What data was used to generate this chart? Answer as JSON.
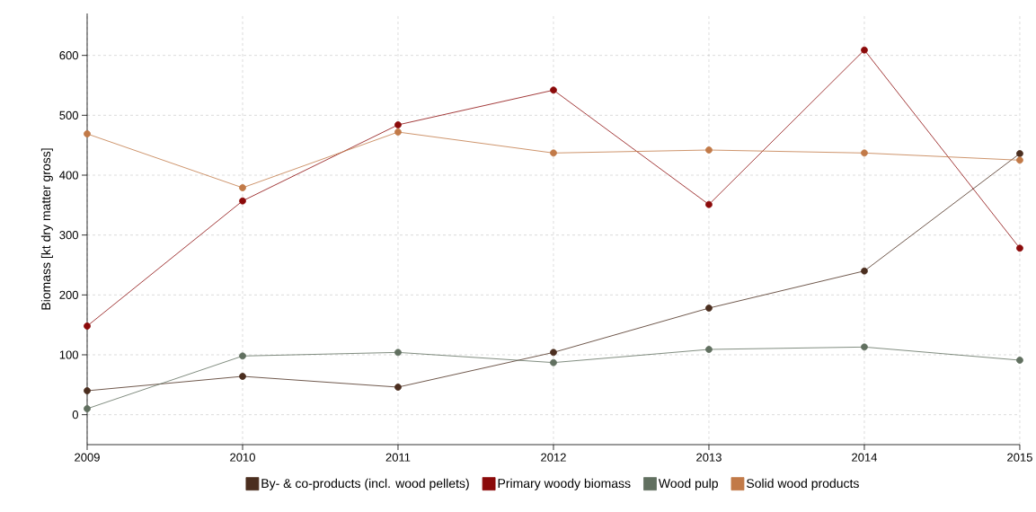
{
  "chart_data": {
    "type": "line",
    "ylabel": "Biomass [kt dry matter gross]",
    "x": [
      2009,
      2010,
      2011,
      2012,
      2013,
      2014,
      2015
    ],
    "xlim": [
      2009,
      2015
    ],
    "xticks": [
      2009,
      2010,
      2011,
      2012,
      2013,
      2014,
      2015
    ],
    "ylim": [
      -50,
      670
    ],
    "yticks": [
      0,
      100,
      200,
      300,
      400,
      500,
      600
    ],
    "grid": true,
    "legend": "bottom",
    "marker": "circle",
    "line_style": "solid",
    "series": [
      {
        "name": "By- & co-products (incl. wood pellets)",
        "color": "#4b2e1f",
        "values": [
          40,
          64,
          46,
          104,
          178,
          240,
          436
        ]
      },
      {
        "name": "Primary woody biomass",
        "color": "#8b0a0a",
        "values": [
          148,
          357,
          484,
          542,
          351,
          609,
          278
        ]
      },
      {
        "name": "Wood pulp",
        "color": "#617060",
        "values": [
          10,
          98,
          104,
          87,
          109,
          113,
          91
        ]
      },
      {
        "name": "Solid wood products",
        "color": "#c27a48",
        "values": [
          469,
          379,
          472,
          437,
          442,
          437,
          425
        ]
      }
    ]
  }
}
